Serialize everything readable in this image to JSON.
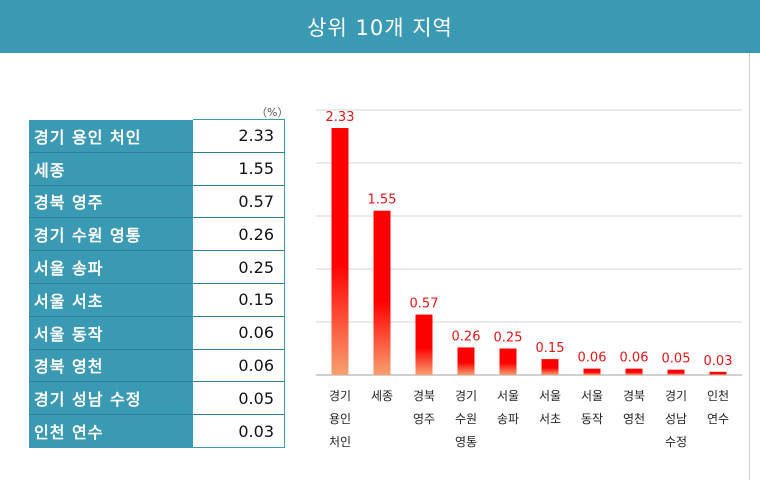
{
  "header": {
    "title": "상위 10개 지역"
  },
  "table": {
    "unit": "（%）",
    "rows": [
      {
        "region": "경기 용인 처인",
        "value": "2.33"
      },
      {
        "region": "세종",
        "value": "1.55"
      },
      {
        "region": "경북 영주",
        "value": "0.57"
      },
      {
        "region": "경기 수원 영통",
        "value": "0.26"
      },
      {
        "region": "서울 송파",
        "value": "0.25"
      },
      {
        "region": "서울 서초",
        "value": "0.15"
      },
      {
        "region": "서울 동작",
        "value": "0.06"
      },
      {
        "region": "경북 영천",
        "value": "0.06"
      },
      {
        "region": "경기 성남 수정",
        "value": "0.05"
      },
      {
        "region": "인천 연수",
        "value": "0.03"
      }
    ]
  },
  "colors": {
    "header_bg": "#3a9ab3",
    "bar_top": "#ff0000",
    "bar_bottom": "#f8a070",
    "label": "#e01818"
  },
  "chart_data": {
    "type": "bar",
    "categories": [
      [
        "경기",
        "용인",
        "처인"
      ],
      [
        "세종"
      ],
      [
        "경북",
        "영주"
      ],
      [
        "경기",
        "수원",
        "영통"
      ],
      [
        "서울",
        "송파"
      ],
      [
        "서울",
        "서초"
      ],
      [
        "서울",
        "동작"
      ],
      [
        "경북",
        "영천"
      ],
      [
        "경기",
        "성남",
        "수정"
      ],
      [
        "인천",
        "연수"
      ]
    ],
    "values": [
      2.33,
      1.55,
      0.57,
      0.26,
      0.25,
      0.15,
      0.06,
      0.06,
      0.05,
      0.03
    ],
    "value_labels": [
      "2.33",
      "1.55",
      "0.57",
      "0.26",
      "0.25",
      "0.15",
      "0.06",
      "0.06",
      "0.05",
      "0.03"
    ],
    "ylim": [
      0,
      2.5
    ],
    "grid": true,
    "yaxis_labels_shown": false,
    "legend": "none"
  }
}
